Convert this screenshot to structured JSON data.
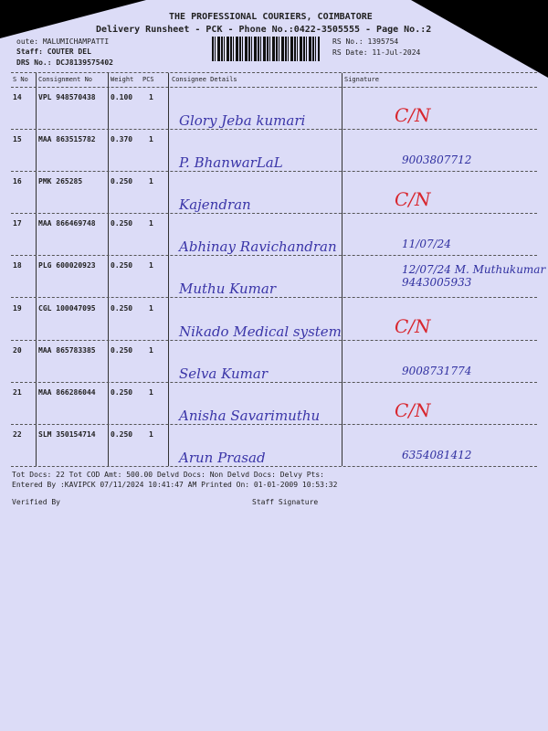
{
  "header": {
    "company": "THE PROFESSIONAL COURIERS, COIMBATORE",
    "subtitle": "Delivery Runsheet - PCK - Phone No.:0422-3505555 - Page No.:2",
    "route": "oute: MALUMICHAMPATTI",
    "staff": "Staff: COUTER DEL",
    "drs": "DRS No.: DCJ8139575402",
    "rs_no": "RS No.: 1395754",
    "rs_date": "RS Date: 11-Jul-2024"
  },
  "columns": [
    "S No",
    "Consignment No",
    "Weight",
    "PCS",
    "Consignee Details",
    "Signature"
  ],
  "rows": [
    {
      "sno": "14",
      "cons": "VPL 948570438",
      "weight": "0.100",
      "pcs": "1",
      "name": "Glory Jeba kumari",
      "sig": "C/N",
      "sig_note": ""
    },
    {
      "sno": "15",
      "cons": "MAA 863515782",
      "weight": "0.370",
      "pcs": "1",
      "name": "P. BhanwarLaL",
      "sig": "",
      "sig_note": "9003807712"
    },
    {
      "sno": "16",
      "cons": "PMK 265285",
      "weight": "0.250",
      "pcs": "1",
      "name": "Kajendran",
      "sig": "C/N",
      "sig_note": ""
    },
    {
      "sno": "17",
      "cons": "MAA 866469748",
      "weight": "0.250",
      "pcs": "1",
      "name": "Abhinay Ravichandran",
      "sig": "",
      "sig_note": "11/07/24"
    },
    {
      "sno": "18",
      "cons": "PLG 600020923",
      "weight": "0.250",
      "pcs": "1",
      "name": "Muthu Kumar",
      "sig": "",
      "sig_note": "12/07/24 M. Muthukumar 9443005933"
    },
    {
      "sno": "19",
      "cons": "CGL 100047095",
      "weight": "0.250",
      "pcs": "1",
      "name": "Nikado Medical system",
      "sig": "C/N",
      "sig_note": ""
    },
    {
      "sno": "20",
      "cons": "MAA 865783385",
      "weight": "0.250",
      "pcs": "1",
      "name": "Selva Kumar",
      "sig": "",
      "sig_note": "9008731774"
    },
    {
      "sno": "21",
      "cons": "MAA 866286044",
      "weight": "0.250",
      "pcs": "1",
      "name": "Anisha Savarimuthu",
      "sig": "C/N",
      "sig_note": ""
    },
    {
      "sno": "22",
      "cons": "SLM 350154714",
      "weight": "0.250",
      "pcs": "1",
      "name": "Arun Prasad",
      "sig": "",
      "sig_note": "6354081412"
    }
  ],
  "footer": {
    "totals": "Tot Docs:  22   Tot COD Amt:  500.00    Delvd Docs:     Non Delvd Docs:     Delvy Pts:",
    "entered": "Entered By :KAVIPCK 07/11/2024 10:41:47 AM    Printed On: 01-01-2009 10:53:32",
    "verified": "Verified By",
    "staff_sig": "Staff Signature"
  }
}
